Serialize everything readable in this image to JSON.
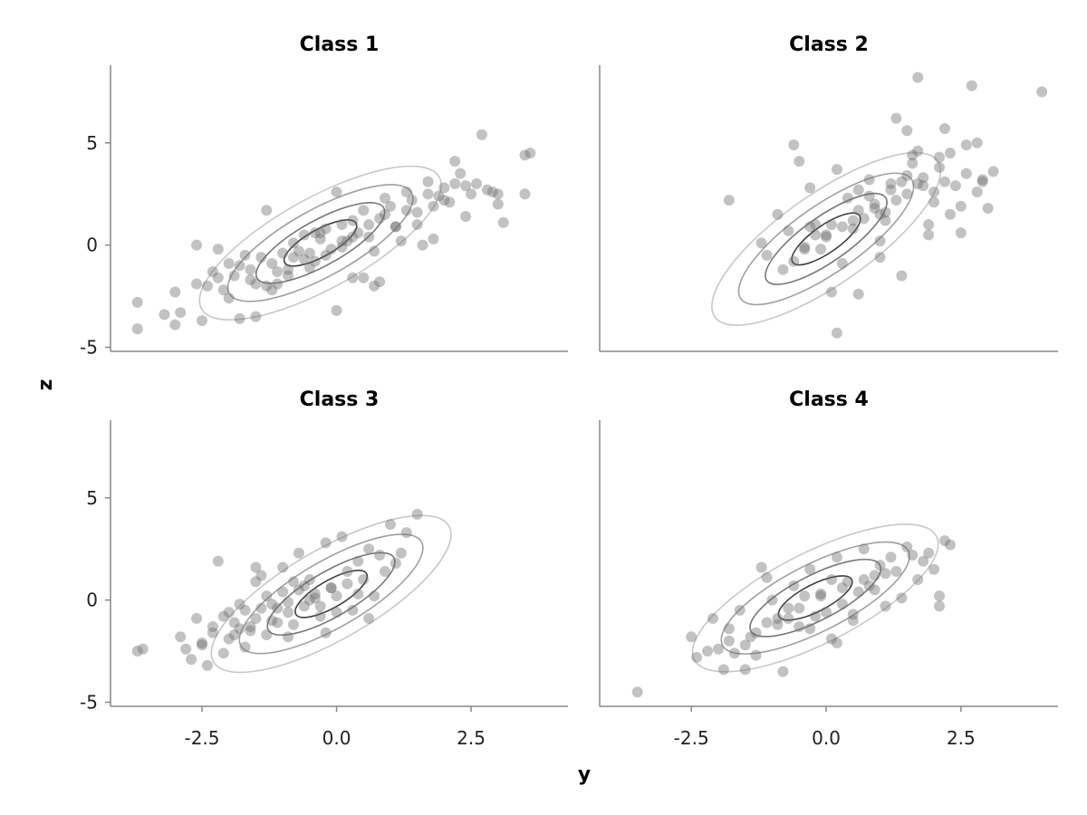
{
  "chart_data": {
    "type": "scatter",
    "xlabel": "y",
    "ylabel": "z",
    "xlim": [
      -4.2,
      4.3
    ],
    "ylim": [
      -5.2,
      8.8
    ],
    "xticks": [
      "-2.5",
      "0.0",
      "2.5"
    ],
    "xtick_values": [
      -2.5,
      0.0,
      2.5
    ],
    "yticks": [
      "-5",
      "0",
      "5"
    ],
    "ytick_values": [
      -5,
      0,
      5
    ],
    "grid": false,
    "legend": "none",
    "point_color": "#6e6e6e",
    "contour_colors": [
      "#c8c8c8",
      "#a0a0a0",
      "#787878",
      "#404040"
    ],
    "panels": [
      {
        "title": "Class 1",
        "series": [
          {
            "x": [
              -3.7,
              -3.7,
              -3.2,
              -3.0,
              -3.0,
              -2.9,
              -2.6,
              -2.5,
              -2.4,
              -2.3,
              -2.2,
              -2.1,
              -2.0,
              -1.9,
              -1.8,
              -1.7,
              -1.6,
              -1.5,
              -1.4,
              -1.3,
              -1.2,
              -1.1,
              -1.0,
              -0.9,
              -0.8,
              -0.7,
              -0.6,
              -0.5,
              -0.4,
              -0.3,
              -0.2,
              -0.1,
              0.0,
              0.1,
              0.2,
              0.3,
              0.4,
              0.5,
              0.6,
              0.7,
              0.8,
              0.9,
              1.0,
              1.1,
              1.2,
              1.3,
              1.4,
              1.5,
              1.6,
              1.7,
              1.8,
              1.9,
              2.0,
              2.1,
              2.2,
              2.3,
              2.4,
              2.5,
              2.6,
              2.7,
              2.8,
              2.9,
              3.0,
              3.1,
              3.5,
              3.5,
              3.6,
              -2.6,
              -2.2,
              -1.8,
              -1.3,
              -0.9,
              -0.4,
              0.1,
              0.6,
              1.1,
              1.5,
              2.0,
              2.4,
              3.0,
              -1.6,
              -1.1,
              -0.6,
              -0.2,
              0.3,
              0.8,
              1.3,
              1.8,
              -0.8,
              0.0,
              0.7,
              -1.2,
              0.5,
              -2.0,
              1.7,
              -0.3,
              0.9,
              -1.5,
              2.2,
              0.3,
              0.1,
              -0.5
            ],
            "y": [
              -2.8,
              -4.1,
              -3.4,
              -2.3,
              -3.9,
              -3.3,
              0.0,
              -3.7,
              -2.0,
              -1.3,
              -0.2,
              -2.2,
              -2.6,
              -1.5,
              -3.6,
              -0.5,
              -1.2,
              -3.5,
              -0.6,
              1.7,
              -0.9,
              -1.3,
              -0.4,
              -1.5,
              0.1,
              -0.3,
              0.5,
              -1.1,
              0.6,
              0.3,
              0.8,
              -0.2,
              2.6,
              1.0,
              0.2,
              1.2,
              0.6,
              1.7,
              1.0,
              -0.3,
              -1.8,
              1.5,
              1.9,
              0.9,
              0.2,
              2.6,
              2.2,
              1.0,
              0.0,
              3.1,
              0.3,
              2.4,
              2.8,
              2.1,
              4.1,
              3.5,
              1.4,
              2.5,
              3.0,
              5.4,
              2.7,
              2.6,
              2.5,
              1.1,
              2.5,
              4.4,
              4.5,
              -1.9,
              -1.6,
              -1.0,
              -2.0,
              -1.2,
              -0.8,
              -0.1,
              0.4,
              0.9,
              1.6,
              2.2,
              2.9,
              2.0,
              -1.7,
              -1.9,
              -0.7,
              -0.5,
              0.4,
              1.3,
              1.7,
              1.9,
              -0.6,
              -3.2,
              -2.0,
              -2.2,
              -1.6,
              -0.9,
              2.5,
              0.6,
              2.3,
              -1.9,
              3.0,
              -1.6,
              0.2,
              -0.4
            ]
          }
        ],
        "contour_center": [
          -0.3,
          0.1
        ],
        "contour_angle_deg": 29
      },
      {
        "title": "Class 2",
        "series": [
          {
            "x": [
              -0.6,
              -0.5,
              -1.1,
              -1.8,
              -0.3,
              0.2,
              0.5,
              -0.4,
              -0.8,
              -0.9,
              -0.6,
              -0.2,
              0.1,
              0.3,
              0.6,
              0.8,
              1.0,
              1.2,
              1.3,
              1.5,
              1.6,
              1.7,
              1.8,
              1.9,
              2.0,
              2.1,
              2.2,
              2.3,
              2.4,
              2.5,
              2.6,
              2.7,
              2.8,
              2.9,
              3.0,
              3.1,
              4.0,
              1.7,
              2.8,
              1.0,
              1.4,
              1.9,
              0.2,
              0.0,
              -0.1,
              0.4,
              0.7,
              0.9,
              1.1,
              1.6,
              2.0,
              2.2,
              2.6,
              -1.2,
              -0.7,
              -0.3,
              0.1,
              0.5,
              0.9,
              1.2,
              1.5,
              1.8,
              2.3,
              1.0,
              1.4,
              2.5,
              0.3,
              0.6,
              -0.4,
              1.1,
              1.7,
              2.9,
              0.8,
              -0.2,
              1.3,
              2.1,
              0.0,
              0.6,
              1.5
            ],
            "y": [
              4.9,
              4.1,
              -0.5,
              2.2,
              2.8,
              3.7,
              1.2,
              -0.1,
              -1.2,
              1.5,
              -0.8,
              0.5,
              -2.3,
              0.9,
              1.7,
              2.4,
              1.5,
              3.0,
              6.2,
              2.5,
              4.0,
              8.2,
              3.3,
              0.5,
              2.1,
              4.3,
              3.1,
              1.5,
              2.9,
              1.9,
              4.9,
              7.8,
              5.0,
              3.2,
              1.8,
              3.6,
              7.5,
              3.0,
              2.6,
              0.2,
              3.1,
              1.0,
              -4.3,
              0.4,
              -0.2,
              2.3,
              1.3,
              1.8,
              1.6,
              4.4,
              2.6,
              5.7,
              3.5,
              0.1,
              0.7,
              0.9,
              1.0,
              0.8,
              2.0,
              2.7,
              3.4,
              2.9,
              4.5,
              -0.6,
              -1.5,
              0.6,
              -0.9,
              -2.4,
              -0.2,
              1.2,
              4.6,
              3.1,
              3.2,
              1.0,
              2.2,
              3.8,
              0.5,
              2.7,
              5.6
            ]
          }
        ],
        "contour_center": [
          0.0,
          0.3
        ],
        "contour_angle_deg": 35
      },
      {
        "title": "Class 3",
        "series": [
          {
            "x": [
              -3.7,
              -3.6,
              -2.9,
              -2.8,
              -2.7,
              -2.6,
              -2.5,
              -2.4,
              -2.3,
              -2.2,
              -2.1,
              -2.0,
              -1.9,
              -1.8,
              -1.7,
              -1.6,
              -1.5,
              -1.4,
              -1.3,
              -1.2,
              -1.1,
              -1.0,
              -0.9,
              -0.8,
              -0.7,
              -0.6,
              -0.5,
              -0.4,
              -0.3,
              -0.2,
              -0.1,
              0.0,
              0.1,
              0.2,
              0.3,
              0.4,
              0.5,
              0.6,
              0.7,
              0.8,
              0.9,
              1.0,
              1.1,
              1.2,
              1.3,
              1.5,
              -2.3,
              -2.1,
              -1.9,
              -1.7,
              -1.5,
              -1.3,
              -1.1,
              -0.9,
              -0.7,
              -0.5,
              -0.3,
              -0.1,
              0.2,
              0.4,
              -2.0,
              -1.6,
              -1.2,
              -0.8,
              -0.4,
              0.0,
              -1.4,
              -1.0,
              -0.6,
              -1.8,
              -2.5,
              0.6,
              -0.2,
              -1.5,
              -0.9
            ],
            "y": [
              -2.5,
              -2.4,
              -1.8,
              -2.4,
              -2.9,
              -0.9,
              -2.1,
              -3.2,
              -1.6,
              1.9,
              -2.6,
              -0.6,
              -1.7,
              -0.2,
              -2.3,
              -1.3,
              1.6,
              -0.4,
              -1.7,
              -0.2,
              -1.1,
              0.4,
              -0.6,
              0.9,
              2.3,
              -0.3,
              1.0,
              0.3,
              -0.8,
              2.8,
              0.6,
              0.2,
              3.1,
              1.4,
              -0.5,
              1.9,
              1.0,
              2.5,
              0.2,
              2.2,
              1.4,
              3.7,
              1.8,
              2.3,
              3.3,
              4.2,
              -1.3,
              -0.8,
              -1.1,
              -0.5,
              -0.9,
              0.2,
              -0.4,
              -0.1,
              0.5,
              0.0,
              -0.3,
              0.6,
              0.8,
              0.3,
              -1.9,
              -1.5,
              -1.0,
              -1.2,
              0.1,
              -0.6,
              1.2,
              1.6,
              0.7,
              -1.4,
              -2.2,
              -0.9,
              -1.6,
              0.9,
              -1.8
            ]
          }
        ],
        "contour_center": [
          -0.1,
          0.3
        ],
        "contour_angle_deg": 30
      },
      {
        "title": "Class 4",
        "series": [
          {
            "x": [
              -3.5,
              -2.5,
              -2.4,
              -2.2,
              -2.1,
              -2.0,
              -1.9,
              -1.8,
              -1.7,
              -1.6,
              -1.5,
              -1.4,
              -1.3,
              -1.2,
              -1.1,
              -1.0,
              -0.9,
              -0.8,
              -0.7,
              -0.6,
              -0.5,
              -0.4,
              -0.3,
              -0.2,
              -0.1,
              0.0,
              0.1,
              0.2,
              0.3,
              0.4,
              0.5,
              0.6,
              0.7,
              0.8,
              0.9,
              1.0,
              1.1,
              1.2,
              1.3,
              1.4,
              1.5,
              1.6,
              1.7,
              1.8,
              1.9,
              2.0,
              2.1,
              2.1,
              2.2,
              2.3,
              -1.8,
              -1.3,
              -0.9,
              -0.5,
              -0.1,
              0.3,
              0.7,
              1.1,
              -1.5,
              -0.7,
              0.1,
              0.9,
              -0.3,
              0.5,
              -1.1,
              0.2
            ],
            "y": [
              -4.5,
              -1.8,
              -2.8,
              -2.5,
              -0.9,
              -2.4,
              -3.4,
              -1.4,
              -2.6,
              -0.5,
              -3.4,
              -1.8,
              -2.7,
              1.6,
              -1.1,
              0.0,
              -0.9,
              -3.5,
              -0.4,
              0.7,
              -1.3,
              0.2,
              1.5,
              -0.8,
              0.3,
              -0.6,
              1.0,
              2.1,
              -0.2,
              0.9,
              -1.0,
              0.4,
              2.5,
              0.7,
              1.2,
              1.7,
              -0.3,
              2.1,
              1.4,
              0.1,
              2.6,
              2.2,
              1.0,
              1.9,
              2.3,
              1.5,
              0.2,
              -0.3,
              2.9,
              2.7,
              -2.0,
              -1.6,
              -1.2,
              -0.4,
              0.2,
              0.6,
              1.0,
              1.3,
              -2.2,
              -0.9,
              -1.9,
              0.5,
              -1.4,
              -0.7,
              1.1,
              -2.1
            ]
          }
        ],
        "contour_center": [
          -0.2,
          0.1
        ],
        "contour_angle_deg": 27
      }
    ]
  }
}
